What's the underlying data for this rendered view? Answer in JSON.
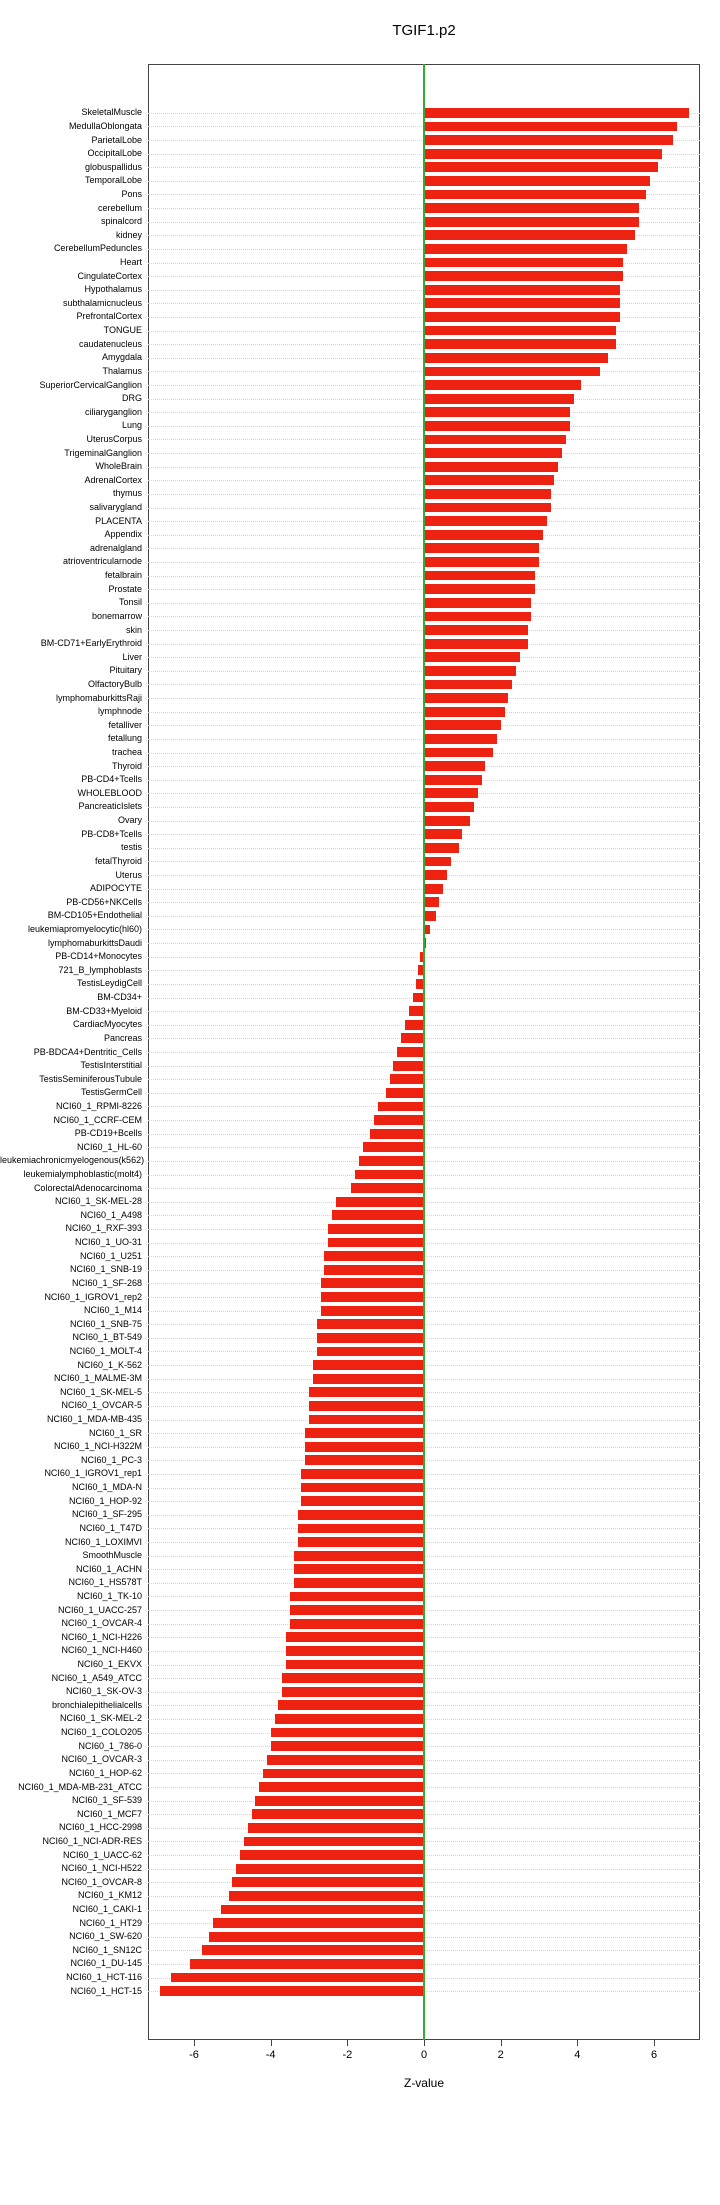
{
  "chart_data": {
    "type": "bar",
    "orientation": "horizontal",
    "title": "TGIF1.p2",
    "xlabel": "Z-value",
    "xlim": [
      -7.2,
      7.2
    ],
    "x_ticks": [
      -6,
      -4,
      -2,
      0,
      2,
      4,
      6
    ],
    "grid": "dotted-horizontal-per-row",
    "legend": "none",
    "bar_color": "#ee2211",
    "zero_line_color": "#2fae2f",
    "frame_color": "#444444",
    "categories": [
      "SkeletalMuscle",
      "MedullaOblongata",
      "ParietalLobe",
      "OccipitalLobe",
      "globuspallidus",
      "TemporalLobe",
      "Pons",
      "cerebellum",
      "spinalcord",
      "kidney",
      "CerebellumPeduncles",
      "Heart",
      "CingulateCortex",
      "Hypothalamus",
      "subthalamicnucleus",
      "PrefrontalCortex",
      "TONGUE",
      "caudatenucleus",
      "Amygdala",
      "Thalamus",
      "SuperiorCervicalGanglion",
      "DRG",
      "ciliaryganglion",
      "Lung",
      "UterusCorpus",
      "TrigeminalGanglion",
      "WholeBrain",
      "AdrenalCortex",
      "thymus",
      "salivarygland",
      "PLACENTA",
      "Appendix",
      "adrenalgland",
      "atrioventricularnode",
      "fetalbrain",
      "Prostate",
      "Tonsil",
      "bonemarrow",
      "skin",
      "BM-CD71+EarlyErythroid",
      "Liver",
      "Pituitary",
      "OlfactoryBulb",
      "lymphomaburkittsRaji",
      "lymphnode",
      "fetalliver",
      "fetallung",
      "trachea",
      "Thyroid",
      "PB-CD4+Tcells",
      "WHOLEBLOOD",
      "PancreaticIslets",
      "Ovary",
      "PB-CD8+Tcells",
      "testis",
      "fetalThyroid",
      "Uterus",
      "ADIPOCYTE",
      "PB-CD56+NKCells",
      "BM-CD105+Endothelial",
      "leukemiapromyelocytic(hl60)",
      "lymphomaburkittsDaudi",
      "PB-CD14+Monocytes",
      "721_B_lymphoblasts",
      "TestisLeydigCell",
      "BM-CD34+",
      "BM-CD33+Myeloid",
      "CardiacMyocytes",
      "Pancreas",
      "PB-BDCA4+Dentritic_Cells",
      "TestisInterstitial",
      "TestisSeminiferousTubule",
      "TestisGermCell",
      "NCI60_1_RPMI-8226",
      "NCI60_1_CCRF-CEM",
      "PB-CD19+Bcells",
      "NCI60_1_HL-60",
      "leukemiachronicmyelogenous(k562)",
      "leukemialymphoblastic(molt4)",
      "ColorectalAdenocarcinoma",
      "NCI60_1_SK-MEL-28",
      "NCI60_1_A498",
      "NCI60_1_RXF-393",
      "NCI60_1_UO-31",
      "NCI60_1_U251",
      "NCI60_1_SNB-19",
      "NCI60_1_SF-268",
      "NCI60_1_IGROV1_rep2",
      "NCI60_1_M14",
      "NCI60_1_SNB-75",
      "NCI60_1_BT-549",
      "NCI60_1_MOLT-4",
      "NCI60_1_K-562",
      "NCI60_1_MALME-3M",
      "NCI60_1_SK-MEL-5",
      "NCI60_1_OVCAR-5",
      "NCI60_1_MDA-MB-435",
      "NCI60_1_SR",
      "NCI60_1_NCI-H322M",
      "NCI60_1_PC-3",
      "NCI60_1_IGROV1_rep1",
      "NCI60_1_MDA-N",
      "NCI60_1_HOP-92",
      "NCI60_1_SF-295",
      "NCI60_1_T47D",
      "NCI60_1_LOXIMVI",
      "SmoothMuscle",
      "NCI60_1_ACHN",
      "NCI60_1_HS578T",
      "NCI60_1_TK-10",
      "NCI60_1_UACC-257",
      "NCI60_1_OVCAR-4",
      "NCI60_1_NCI-H226",
      "NCI60_1_NCI-H460",
      "NCI60_1_EKVX",
      "NCI60_1_A549_ATCC",
      "NCI60_1_SK-OV-3",
      "bronchialepithelialcells",
      "NCI60_1_SK-MEL-2",
      "NCI60_1_COLO205",
      "NCI60_1_786-0",
      "NCI60_1_OVCAR-3",
      "NCI60_1_HOP-62",
      "NCI60_1_MDA-MB-231_ATCC",
      "NCI60_1_SF-539",
      "NCI60_1_MCF7",
      "NCI60_1_HCC-2998",
      "NCI60_1_NCI-ADR-RES",
      "NCI60_1_UACC-62",
      "NCI60_1_NCI-H522",
      "NCI60_1_OVCAR-8",
      "NCI60_1_KM12",
      "NCI60_1_CAKI-1",
      "NCI60_1_HT29",
      "NCI60_1_SW-620",
      "NCI60_1_SN12C",
      "NCI60_1_DU-145",
      "NCI60_1_HCT-116",
      "NCI60_1_HCT-15"
    ],
    "values": [
      6.9,
      6.6,
      6.5,
      6.2,
      6.1,
      5.9,
      5.8,
      5.6,
      5.6,
      5.5,
      5.3,
      5.2,
      5.2,
      5.1,
      5.1,
      5.1,
      5.0,
      5.0,
      4.8,
      4.6,
      4.1,
      3.9,
      3.8,
      3.8,
      3.7,
      3.6,
      3.5,
      3.4,
      3.3,
      3.3,
      3.2,
      3.1,
      3.0,
      3.0,
      2.9,
      2.9,
      2.8,
      2.8,
      2.7,
      2.7,
      2.5,
      2.4,
      2.3,
      2.2,
      2.1,
      2.0,
      1.9,
      1.8,
      1.6,
      1.5,
      1.4,
      1.3,
      1.2,
      1.0,
      0.9,
      0.7,
      0.6,
      0.5,
      0.4,
      0.3,
      0.15,
      0.05,
      -0.1,
      -0.15,
      -0.2,
      -0.3,
      -0.4,
      -0.5,
      -0.6,
      -0.7,
      -0.8,
      -0.9,
      -1.0,
      -1.2,
      -1.3,
      -1.4,
      -1.6,
      -1.7,
      -1.8,
      -1.9,
      -2.3,
      -2.4,
      -2.5,
      -2.5,
      -2.6,
      -2.6,
      -2.7,
      -2.7,
      -2.7,
      -2.8,
      -2.8,
      -2.8,
      -2.9,
      -2.9,
      -3.0,
      -3.0,
      -3.0,
      -3.1,
      -3.1,
      -3.1,
      -3.2,
      -3.2,
      -3.2,
      -3.3,
      -3.3,
      -3.3,
      -3.4,
      -3.4,
      -3.4,
      -3.5,
      -3.5,
      -3.5,
      -3.6,
      -3.6,
      -3.6,
      -3.7,
      -3.7,
      -3.8,
      -3.9,
      -4.0,
      -4.0,
      -4.1,
      -4.2,
      -4.3,
      -4.4,
      -4.5,
      -4.6,
      -4.7,
      -4.8,
      -4.9,
      -5.0,
      -5.1,
      -5.3,
      -5.5,
      -5.6,
      -5.8,
      -6.1,
      -6.6,
      -6.9
    ]
  }
}
